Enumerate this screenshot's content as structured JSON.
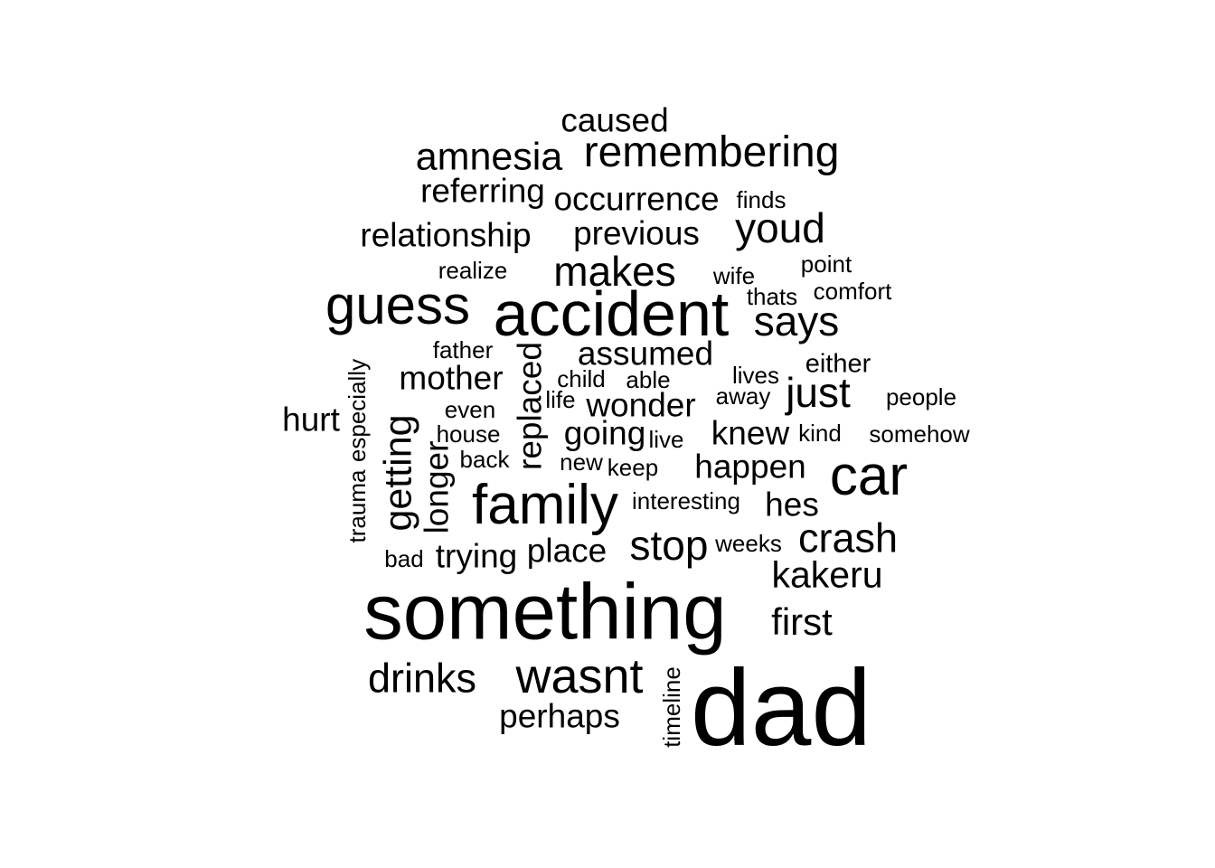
{
  "words": [
    {
      "text": "dad",
      "weight": 10
    },
    {
      "text": "something",
      "weight": 9.2
    },
    {
      "text": "accident",
      "weight": 7.8
    },
    {
      "text": "family",
      "weight": 6.8
    },
    {
      "text": "car",
      "weight": 6.8
    },
    {
      "text": "guess",
      "weight": 6.6
    },
    {
      "text": "wasnt",
      "weight": 6.0
    },
    {
      "text": "remembering",
      "weight": 5.3
    },
    {
      "text": "makes",
      "weight": 5.1
    },
    {
      "text": "youd",
      "weight": 5.1
    },
    {
      "text": "says",
      "weight": 5.1
    },
    {
      "text": "stop",
      "weight": 5.1
    },
    {
      "text": "just",
      "weight": 5.1
    },
    {
      "text": "drinks",
      "weight": 4.9
    },
    {
      "text": "crash",
      "weight": 4.9
    },
    {
      "text": "amnesia",
      "weight": 4.7
    },
    {
      "text": "getting",
      "weight": 4.6
    },
    {
      "text": "first",
      "weight": 4.6
    },
    {
      "text": "kakeru",
      "weight": 4.5
    },
    {
      "text": "occurrence",
      "weight": 4.1
    },
    {
      "text": "caused",
      "weight": 4.1
    },
    {
      "text": "relationship",
      "weight": 4.1
    },
    {
      "text": "previous",
      "weight": 4.1
    },
    {
      "text": "referring",
      "weight": 4.1
    },
    {
      "text": "assumed",
      "weight": 4.1
    },
    {
      "text": "mother",
      "weight": 4.1
    },
    {
      "text": "wonder",
      "weight": 4.1
    },
    {
      "text": "replaced",
      "weight": 4.1
    },
    {
      "text": "longer",
      "weight": 4.1
    },
    {
      "text": "hurt",
      "weight": 4.1
    },
    {
      "text": "happen",
      "weight": 4.1
    },
    {
      "text": "knew",
      "weight": 4.1
    },
    {
      "text": "going",
      "weight": 4.1
    },
    {
      "text": "hes",
      "weight": 4.1
    },
    {
      "text": "place",
      "weight": 4.1
    },
    {
      "text": "trying",
      "weight": 4.1
    },
    {
      "text": "perhaps",
      "weight": 4.1
    },
    {
      "text": "either",
      "weight": 3.3
    },
    {
      "text": "especially",
      "weight": 3.0
    },
    {
      "text": "trauma",
      "weight": 3.0
    },
    {
      "text": "timeline",
      "weight": 3.0
    },
    {
      "text": "finds",
      "weight": 3.0
    },
    {
      "text": "realize",
      "weight": 3.0
    },
    {
      "text": "wife",
      "weight": 3.0
    },
    {
      "text": "point",
      "weight": 3.0
    },
    {
      "text": "thats",
      "weight": 3.0
    },
    {
      "text": "comfort",
      "weight": 3.0
    },
    {
      "text": "father",
      "weight": 3.0
    },
    {
      "text": "child",
      "weight": 3.0
    },
    {
      "text": "able",
      "weight": 3.0
    },
    {
      "text": "lives",
      "weight": 3.0
    },
    {
      "text": "life",
      "weight": 3.0
    },
    {
      "text": "even",
      "weight": 3.0
    },
    {
      "text": "away",
      "weight": 3.0
    },
    {
      "text": "people",
      "weight": 3.0
    },
    {
      "text": "house",
      "weight": 3.0
    },
    {
      "text": "live",
      "weight": 3.0
    },
    {
      "text": "kind",
      "weight": 3.0
    },
    {
      "text": "somehow",
      "weight": 3.0
    },
    {
      "text": "back",
      "weight": 3.0
    },
    {
      "text": "new",
      "weight": 3.0
    },
    {
      "text": "keep",
      "weight": 3.0
    },
    {
      "text": "interesting",
      "weight": 3.0
    },
    {
      "text": "weeks",
      "weight": 3.0
    },
    {
      "text": "bad",
      "weight": 3.0
    }
  ]
}
